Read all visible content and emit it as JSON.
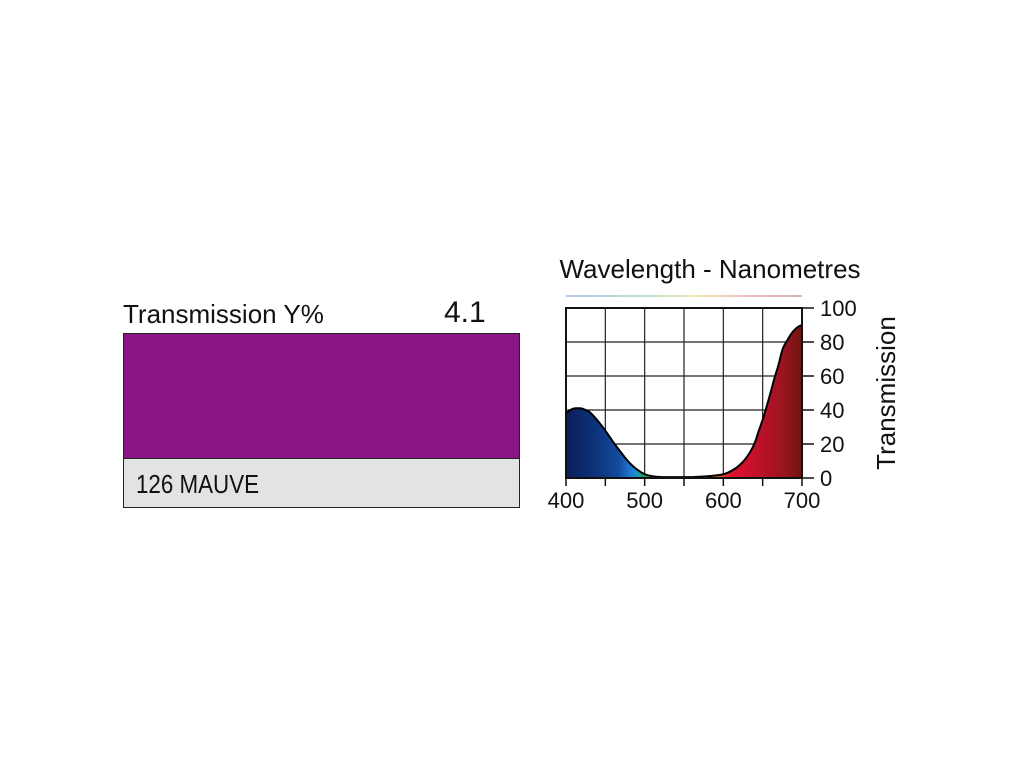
{
  "filter": {
    "transmission_label": "Transmission Y%",
    "transmission_value": "4.1",
    "name": "126 MAUVE",
    "swatch_color": "#8a1685"
  },
  "chart_data": {
    "type": "area",
    "title": "Wavelength - Nanometres",
    "xlabel": "",
    "ylabel": "Transmission",
    "xlim": [
      400,
      700
    ],
    "ylim": [
      0,
      100
    ],
    "xticks": [
      400,
      500,
      600,
      700
    ],
    "yticks": [
      0,
      20,
      40,
      60,
      80,
      100
    ],
    "grid": true,
    "series": [
      {
        "x": [
          400,
          405,
          410,
          415,
          420,
          425,
          430,
          440,
          450,
          460,
          470,
          480,
          490,
          500,
          510,
          520,
          540,
          560,
          580,
          600,
          610,
          620,
          630,
          640,
          645,
          650,
          655,
          660,
          665,
          670,
          675,
          680,
          685,
          690,
          695,
          700
        ],
        "values": [
          38,
          40,
          41,
          41,
          41,
          40,
          39,
          34,
          28,
          21,
          15,
          9,
          5,
          2,
          1,
          0.5,
          0.5,
          0.5,
          1,
          2,
          4,
          7,
          12,
          20,
          28,
          34,
          42,
          50,
          59,
          66,
          76,
          80,
          84,
          87,
          89,
          90
        ]
      }
    ]
  }
}
